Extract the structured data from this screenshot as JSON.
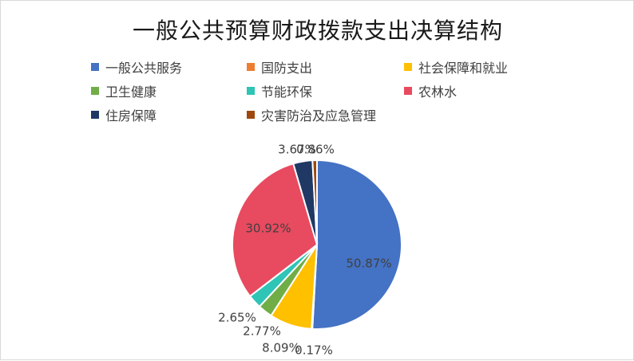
{
  "chart_data": {
    "type": "pie",
    "title": "一般公共预算财政拨款支出决算结构",
    "legend_position": "top",
    "categories": [
      "一般公共服务",
      "国防支出",
      "社会保障和就业",
      "卫生健康",
      "节能环保",
      "农林水",
      "住房保障",
      "灾害防治及应急管理"
    ],
    "values": [
      50.87,
      0.17,
      8.09,
      2.77,
      2.65,
      30.92,
      3.67,
      0.86
    ],
    "value_labels": [
      "50.87%",
      "0.17%",
      "8.09%",
      "2.77%",
      "2.65%",
      "30.92%",
      "3.67%",
      "0.86%"
    ],
    "colors": [
      "#4472C4",
      "#ED7D31",
      "#FFC000",
      "#70AD47",
      "#2EC4B6",
      "#E84A5F",
      "#203864",
      "#9E480E"
    ]
  }
}
